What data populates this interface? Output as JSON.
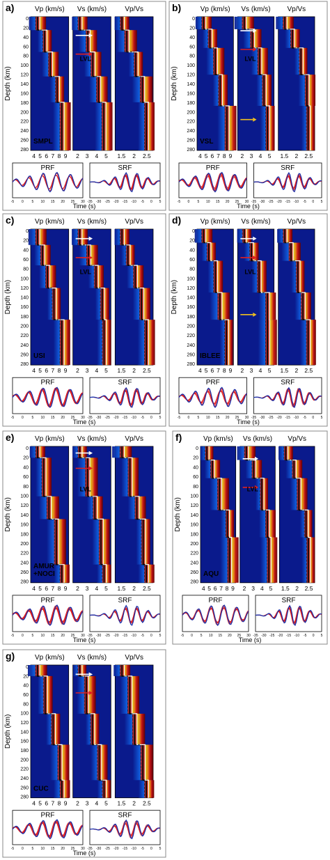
{
  "panels": [
    {
      "letter": "a)",
      "station": "SMPL",
      "box": [
        4,
        2,
        234,
        300
      ],
      "ypos": [
        30,
        79,
        134,
        192
      ],
      "vsjump": [
        60,
        130
      ],
      "arrows": [
        {
          "track": 1,
          "row": 2,
          "color": "#ffffff"
        },
        {
          "track": 1,
          "row": 4,
          "color": "#e02020"
        }
      ],
      "lvl": true
    },
    {
      "letter": "b)",
      "station": "VSL",
      "box": [
        243,
        2,
        227,
        300
      ],
      "ypos": [
        28,
        70,
        130,
        200
      ],
      "vsjump": [
        68,
        150
      ],
      "arrows": [
        {
          "track": 1,
          "row": 1.5,
          "color": "#ffffff"
        },
        {
          "track": 1,
          "row": 3.5,
          "color": "#e02020"
        },
        {
          "track": 1,
          "row": 11,
          "color": "#f0c020"
        }
      ],
      "lvl": true
    },
    {
      "letter": "c)",
      "station": "USI",
      "box": [
        4,
        307,
        234,
        305
      ],
      "ypos": [
        35,
        80,
        130,
        200
      ],
      "vsjump": [
        55,
        140
      ],
      "arrows": [
        {
          "track": 1,
          "row": 1,
          "color": "#ffffff"
        },
        {
          "track": 1,
          "row": 3,
          "color": "#e02020"
        }
      ],
      "lvl": true
    },
    {
      "letter": "d)",
      "station": "IBLEE",
      "box": [
        243,
        307,
        227,
        305
      ],
      "ypos": [
        30,
        70,
        140,
        200
      ],
      "vsjump": [
        60,
        150
      ],
      "arrows": [
        {
          "track": 1,
          "row": 1,
          "color": "#ffffff"
        },
        {
          "track": 1,
          "row": 3,
          "color": "#e02020"
        },
        {
          "track": 1,
          "row": 9,
          "color": "#f0c020"
        }
      ],
      "lvl": true
    },
    {
      "letter": "e)",
      "station": "AMUR +NOCI",
      "box": [
        4,
        619,
        234,
        306
      ],
      "ypos": [
        25,
        110,
        160,
        260
      ],
      "vsjump": [
        40,
        150
      ],
      "arrows": [
        {
          "track": 1,
          "row": 0.7,
          "color": "#ffffff"
        },
        {
          "track": 1,
          "row": 2.3,
          "color": "#e02020"
        }
      ],
      "lvl": true
    },
    {
      "letter": "f)",
      "station": "AQU",
      "box": [
        248,
        619,
        222,
        306
      ],
      "ypos": [
        30,
        70,
        140,
        200
      ],
      "vsjump": [
        40,
        120
      ],
      "arrows": [
        {
          "track": 1,
          "row": 1.3,
          "color": "#ffffff"
        },
        {
          "track": 1,
          "row": 4.3,
          "color": "#e02020"
        }
      ],
      "lvl": true
    },
    {
      "letter": "g)",
      "station": "CUC",
      "box": [
        4,
        933,
        234,
        298
      ],
      "ypos": [
        25,
        110,
        180,
        260
      ],
      "vsjump": [
        45,
        150
      ],
      "arrows": [
        {
          "track": 1,
          "row": 1,
          "color": "#ffffff"
        },
        {
          "track": 1,
          "row": 3,
          "color": "#e02020"
        }
      ],
      "lvl": false
    }
  ],
  "labels": {
    "vp": "Vp (km/s)",
    "vs": "Vs (km/s)",
    "vpvs": "Vp/Vs",
    "depth": "Depth (km)",
    "time": "Time (s)",
    "prf": "PRF",
    "srf": "SRF",
    "lvl": "LVL"
  },
  "depth_ticks": [
    "0",
    "20",
    "40",
    "60",
    "80",
    "100",
    "120",
    "140",
    "160",
    "180",
    "200",
    "220",
    "240",
    "260",
    "280"
  ],
  "vp_ticks": [
    "4",
    "5",
    "6",
    "7",
    "8",
    "9"
  ],
  "vs_ticks": [
    "2",
    "3",
    "4",
    "5"
  ],
  "vpvs_ticks": [
    "1.5",
    "2",
    "2.5"
  ],
  "prf_ticks": [
    "-5",
    "0",
    "5",
    "10",
    "15",
    "20",
    "25",
    "30"
  ],
  "srf_ticks": [
    "-35",
    "-30",
    "-25",
    "-20",
    "-15",
    "-10",
    "-5",
    "0",
    "5"
  ],
  "colors": {
    "background": "#0a1a8c",
    "hot": "#c81010",
    "line": "#000000",
    "observed": "#1a2ea8",
    "synthetic": "#e01818",
    "frame": "#888888"
  }
}
